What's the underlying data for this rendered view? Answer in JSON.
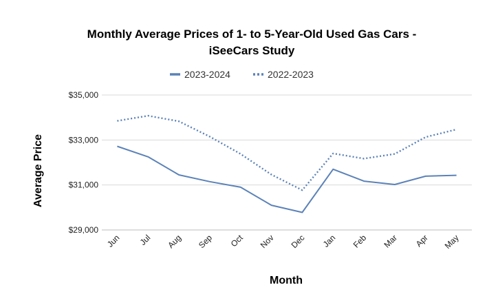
{
  "chart_data": {
    "type": "line",
    "title_line1": "Monthly Average Prices of 1- to 5-Year-Old Used Gas Cars -",
    "title_line2": "iSeeCars Study",
    "xlabel": "Month",
    "ylabel": "Average Price",
    "categories": [
      "Jun",
      "Jul",
      "Aug",
      "Sep",
      "Oct",
      "Nov",
      "Dec",
      "Jan",
      "Feb",
      "Mar",
      "Apr",
      "May"
    ],
    "ylim": [
      29000,
      35000
    ],
    "yticks": [
      29000,
      31000,
      33000,
      35000
    ],
    "ytick_labels": [
      "$29,000",
      "$31,000",
      "$33,000",
      "$35,000"
    ],
    "grid": true,
    "legend_position": "top",
    "series": [
      {
        "name": "2023-2024",
        "style": "solid",
        "color": "#5b82b8",
        "values": [
          32720,
          32250,
          31450,
          31150,
          30900,
          30100,
          29780,
          31700,
          31170,
          31020,
          31390,
          31430
        ]
      },
      {
        "name": "2022-2023",
        "style": "dotted",
        "color": "#5b82b8",
        "values": [
          33850,
          34080,
          33830,
          33150,
          32380,
          31460,
          30770,
          32400,
          32170,
          32380,
          33130,
          33470
        ]
      }
    ]
  }
}
